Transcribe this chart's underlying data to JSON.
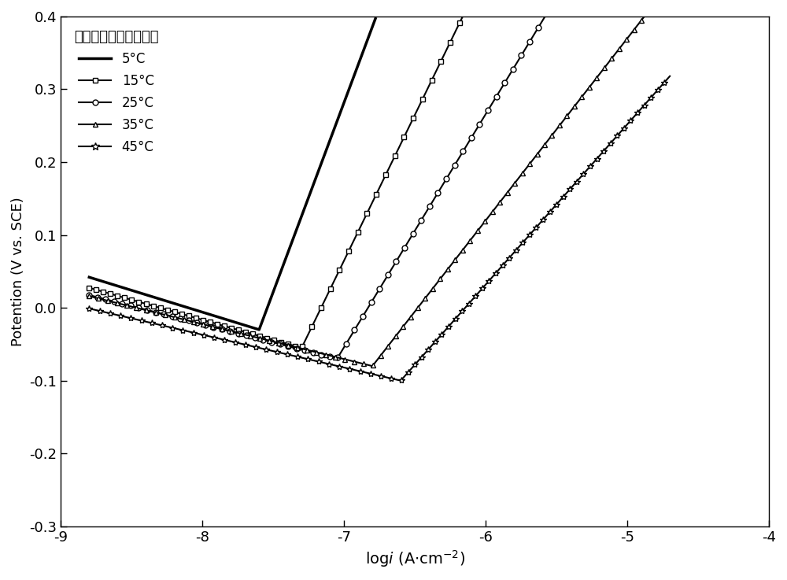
{
  "title_cn": "黄铁矿在草砏土溶液中",
  "ylabel": "Potention (V vs. SCE)",
  "xlim": [
    -9,
    -4
  ],
  "ylim": [
    -0.3,
    0.4
  ],
  "xticks": [
    -9,
    -8,
    -7,
    -6,
    -5,
    -4
  ],
  "yticks": [
    -0.3,
    -0.2,
    -0.1,
    0.0,
    0.1,
    0.2,
    0.3,
    0.4
  ],
  "temperatures": [
    "5°C",
    "15°C",
    "25°C",
    "35°C",
    "45°C"
  ],
  "line_color": "#000000",
  "background_color": "#ffffff",
  "params": [
    {
      "E_corr": -0.03,
      "log_i0": -7.6,
      "ba": 0.52,
      "bc": -0.06,
      "lw": 2.5,
      "marker": null,
      "ms": 0,
      "me": 10
    },
    {
      "E_corr": -0.055,
      "log_i0": -7.3,
      "ba": 0.4,
      "bc": -0.055,
      "lw": 1.5,
      "marker": "s",
      "ms": 5,
      "me": 10
    },
    {
      "E_corr": -0.07,
      "log_i0": -7.05,
      "ba": 0.32,
      "bc": -0.05,
      "lw": 1.5,
      "marker": "o",
      "ms": 5,
      "me": 10
    },
    {
      "E_corr": -0.08,
      "log_i0": -6.8,
      "ba": 0.25,
      "bc": -0.048,
      "lw": 1.5,
      "marker": "^",
      "ms": 5,
      "me": 10
    },
    {
      "E_corr": -0.1,
      "log_i0": -6.6,
      "ba": 0.22,
      "bc": -0.045,
      "lw": 1.5,
      "marker": "*",
      "ms": 6,
      "me": 10
    }
  ]
}
